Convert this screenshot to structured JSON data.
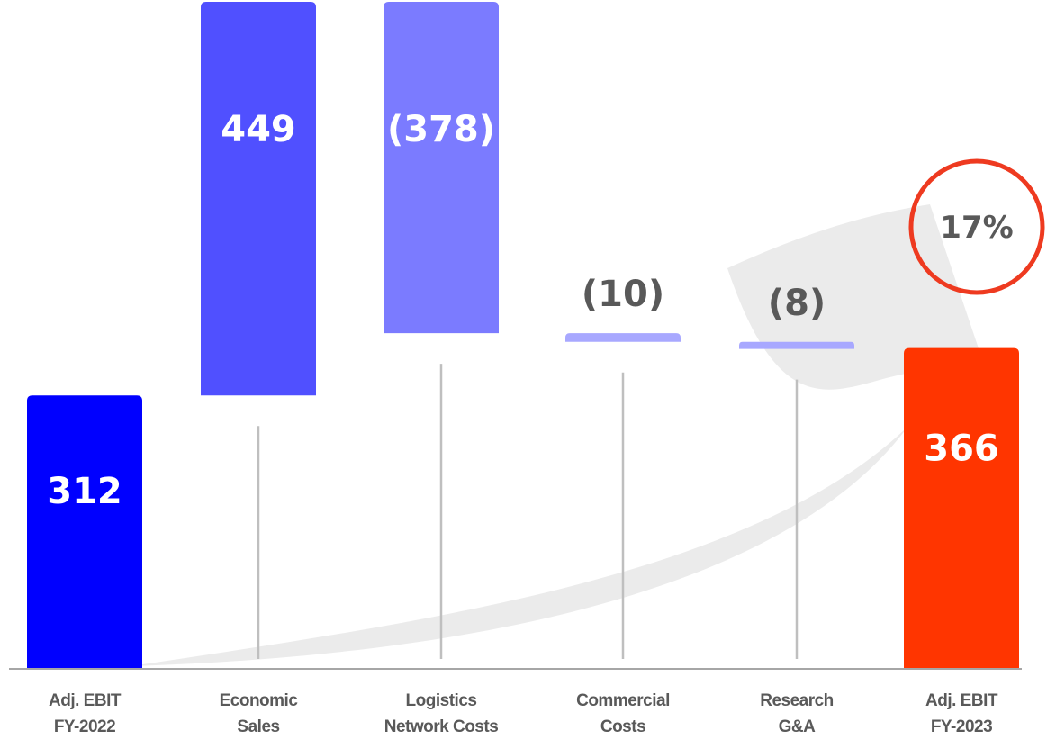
{
  "chart_data": {
    "type": "bar",
    "subtype": "waterfall",
    "categories": [
      [
        "Adj. EBIT",
        "FY-2022"
      ],
      [
        "Economic",
        "Sales"
      ],
      [
        "Logistics",
        "Network Costs"
      ],
      [
        "Commercial",
        "Costs"
      ],
      [
        "Research",
        "G&A"
      ],
      [
        "Adj. EBIT",
        "FY-2023"
      ]
    ],
    "values": [
      312,
      449,
      -378,
      -10,
      -8,
      366
    ],
    "value_labels": [
      "312",
      "449",
      "(378)",
      "(10)",
      "(8)",
      "366"
    ],
    "bar_kinds": [
      "total",
      "delta",
      "delta",
      "delta",
      "delta",
      "total"
    ],
    "colors": [
      "#0000FF",
      "#5050FF",
      "#7B7BFF",
      "#A8A8FF",
      "#A8A8FF",
      "#FF3500"
    ],
    "label_colors": [
      "#FFFFFF",
      "#FFFFFF",
      "#FFFFFF",
      "#595959",
      "#595959",
      "#FFFFFF"
    ],
    "highlight": {
      "label": "17%",
      "color": "#EE3A20"
    },
    "arrow_color": "#EBEBEB",
    "connector_color": "#BFBFBF",
    "axis_color": "#A6A6A6"
  }
}
